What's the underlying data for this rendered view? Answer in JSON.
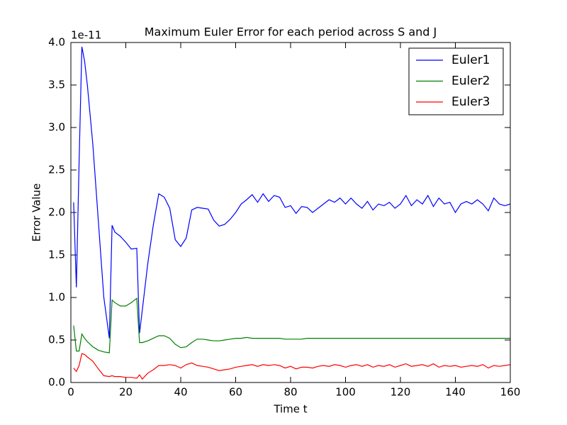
{
  "chart_data": {
    "type": "line",
    "title": "Maximum Euler Error for each period across S and J",
    "y_offset_label": "1e-11",
    "x_label": "Time t",
    "y_label": "Error Value",
    "x": [
      1,
      2,
      3,
      4,
      5,
      6,
      8,
      10,
      12,
      14,
      15,
      16,
      18,
      20,
      22,
      24,
      25,
      26,
      28,
      30,
      32,
      34,
      36,
      38,
      40,
      42,
      44,
      46,
      48,
      50,
      52,
      54,
      56,
      58,
      60,
      62,
      64,
      66,
      68,
      70,
      72,
      74,
      76,
      78,
      80,
      82,
      84,
      86,
      88,
      90,
      92,
      94,
      96,
      98,
      100,
      102,
      104,
      106,
      108,
      110,
      112,
      114,
      116,
      118,
      120,
      122,
      124,
      126,
      128,
      130,
      132,
      134,
      136,
      138,
      140,
      142,
      144,
      146,
      148,
      150,
      152,
      154,
      156,
      158,
      160
    ],
    "series": [
      {
        "name": "Euler1",
        "color": "#0000ff",
        "values": [
          2.12,
          1.12,
          2.6,
          3.95,
          3.78,
          3.5,
          2.8,
          1.9,
          1.0,
          0.52,
          1.85,
          1.77,
          1.72,
          1.65,
          1.57,
          1.58,
          0.58,
          0.85,
          1.4,
          1.85,
          2.22,
          2.18,
          2.05,
          1.68,
          1.6,
          1.7,
          2.03,
          2.06,
          2.05,
          2.04,
          1.91,
          1.84,
          1.86,
          1.92,
          2.0,
          2.1,
          2.15,
          2.21,
          2.12,
          2.22,
          2.13,
          2.2,
          2.18,
          2.06,
          2.08,
          1.99,
          2.07,
          2.06,
          2.0,
          2.05,
          2.1,
          2.15,
          2.12,
          2.17,
          2.1,
          2.17,
          2.1,
          2.05,
          2.13,
          2.03,
          2.1,
          2.08,
          2.12,
          2.05,
          2.1,
          2.2,
          2.08,
          2.15,
          2.1,
          2.2,
          2.07,
          2.17,
          2.1,
          2.12,
          2.0,
          2.1,
          2.13,
          2.1,
          2.15,
          2.1,
          2.02,
          2.17,
          2.1,
          2.08,
          2.1
        ]
      },
      {
        "name": "Euler2",
        "color": "#008000",
        "values": [
          0.67,
          0.37,
          0.37,
          0.57,
          0.52,
          0.48,
          0.42,
          0.38,
          0.36,
          0.35,
          0.97,
          0.94,
          0.9,
          0.9,
          0.94,
          0.99,
          0.47,
          0.47,
          0.49,
          0.52,
          0.55,
          0.55,
          0.52,
          0.45,
          0.41,
          0.42,
          0.47,
          0.51,
          0.51,
          0.5,
          0.49,
          0.49,
          0.5,
          0.51,
          0.52,
          0.52,
          0.53,
          0.52,
          0.52,
          0.52,
          0.52,
          0.52,
          0.52,
          0.51,
          0.51,
          0.51,
          0.51,
          0.52,
          0.52,
          0.52,
          0.52,
          0.52,
          0.52,
          0.52,
          0.52,
          0.52,
          0.52,
          0.52,
          0.52,
          0.52,
          0.52,
          0.52,
          0.52,
          0.52,
          0.52,
          0.52,
          0.52,
          0.52,
          0.52,
          0.52,
          0.52,
          0.52,
          0.52,
          0.52,
          0.52,
          0.52,
          0.52,
          0.52,
          0.52,
          0.52,
          0.52,
          0.52,
          0.52,
          0.52,
          0.52
        ]
      },
      {
        "name": "Euler3",
        "color": "#ff0000",
        "values": [
          0.17,
          0.13,
          0.2,
          0.34,
          0.33,
          0.3,
          0.25,
          0.16,
          0.08,
          0.07,
          0.08,
          0.07,
          0.07,
          0.06,
          0.06,
          0.05,
          0.09,
          0.04,
          0.11,
          0.15,
          0.2,
          0.2,
          0.21,
          0.2,
          0.17,
          0.21,
          0.23,
          0.2,
          0.19,
          0.18,
          0.16,
          0.14,
          0.15,
          0.16,
          0.18,
          0.19,
          0.2,
          0.21,
          0.19,
          0.21,
          0.2,
          0.21,
          0.2,
          0.17,
          0.19,
          0.16,
          0.18,
          0.18,
          0.17,
          0.19,
          0.2,
          0.19,
          0.21,
          0.2,
          0.18,
          0.2,
          0.21,
          0.19,
          0.21,
          0.18,
          0.2,
          0.19,
          0.21,
          0.18,
          0.2,
          0.22,
          0.19,
          0.2,
          0.21,
          0.19,
          0.22,
          0.18,
          0.2,
          0.19,
          0.2,
          0.18,
          0.19,
          0.2,
          0.19,
          0.21,
          0.17,
          0.2,
          0.19,
          0.2,
          0.21
        ]
      }
    ],
    "xlim": [
      0,
      160
    ],
    "xticks": [
      0,
      20,
      40,
      60,
      80,
      100,
      120,
      140,
      160
    ],
    "ylim": [
      0,
      4
    ],
    "yticks": [
      {
        "value": 0,
        "label": "0.0"
      },
      0.5,
      {
        "value": 1,
        "label": "1.0"
      },
      1.5,
      {
        "value": 2,
        "label": "2.0"
      },
      2.5,
      {
        "value": 3,
        "label": "3.0"
      },
      3.5,
      {
        "value": 4,
        "label": "4.0"
      }
    ],
    "grid": false,
    "legend": "upper right"
  }
}
